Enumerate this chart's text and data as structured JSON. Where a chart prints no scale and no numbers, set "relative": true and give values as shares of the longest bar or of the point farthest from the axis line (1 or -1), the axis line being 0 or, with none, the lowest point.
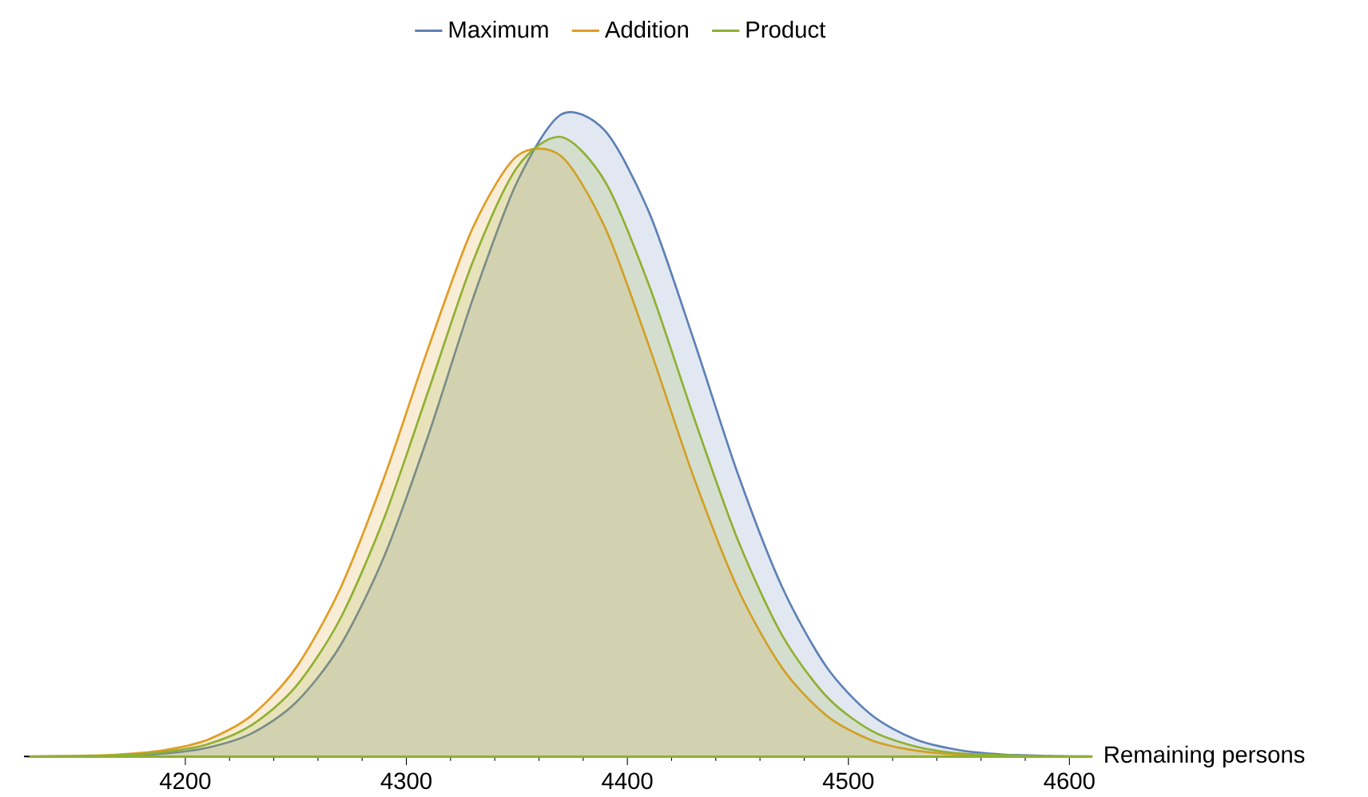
{
  "chart_data": {
    "type": "area",
    "relative": true,
    "xlabel": "Remaining persons",
    "legend": "top",
    "xlim": [
      4127,
      4610
    ],
    "xticks": [
      4200,
      4300,
      4400,
      4500,
      4600
    ],
    "x": [
      4130,
      4150,
      4170,
      4190,
      4210,
      4230,
      4250,
      4270,
      4290,
      4310,
      4330,
      4350,
      4370,
      4390,
      4410,
      4430,
      4450,
      4470,
      4490,
      4510,
      4530,
      4550,
      4570,
      4590,
      4610
    ],
    "series": [
      {
        "name": "Maximum",
        "color": "#5e81b5",
        "values": [
          0.0001,
          0.0004,
          0.0014,
          0.0046,
          0.0137,
          0.036,
          0.084,
          0.172,
          0.312,
          0.501,
          0.712,
          0.894,
          1,
          0.974,
          0.846,
          0.649,
          0.44,
          0.264,
          0.14,
          0.066,
          0.027,
          0.01,
          0.0032,
          0.0009,
          0.0002
        ]
      },
      {
        "name": "Addition",
        "color": "#e19c24",
        "values": [
          0.0002,
          0.0008,
          0.003,
          0.0095,
          0.026,
          0.064,
          0.138,
          0.261,
          0.435,
          0.637,
          0.823,
          0.935,
          0.935,
          0.823,
          0.637,
          0.435,
          0.261,
          0.138,
          0.064,
          0.026,
          0.0095,
          0.003,
          0.0008,
          0.0002,
          0
        ]
      },
      {
        "name": "Product",
        "color": "#8fb032",
        "values": [
          0.0001,
          0.0006,
          0.002,
          0.007,
          0.019,
          0.049,
          0.109,
          0.214,
          0.372,
          0.57,
          0.77,
          0.917,
          0.965,
          0.895,
          0.732,
          0.529,
          0.337,
          0.189,
          0.094,
          0.041,
          0.016,
          0.005,
          0.002,
          0.0004,
          0.0001
        ]
      }
    ]
  }
}
